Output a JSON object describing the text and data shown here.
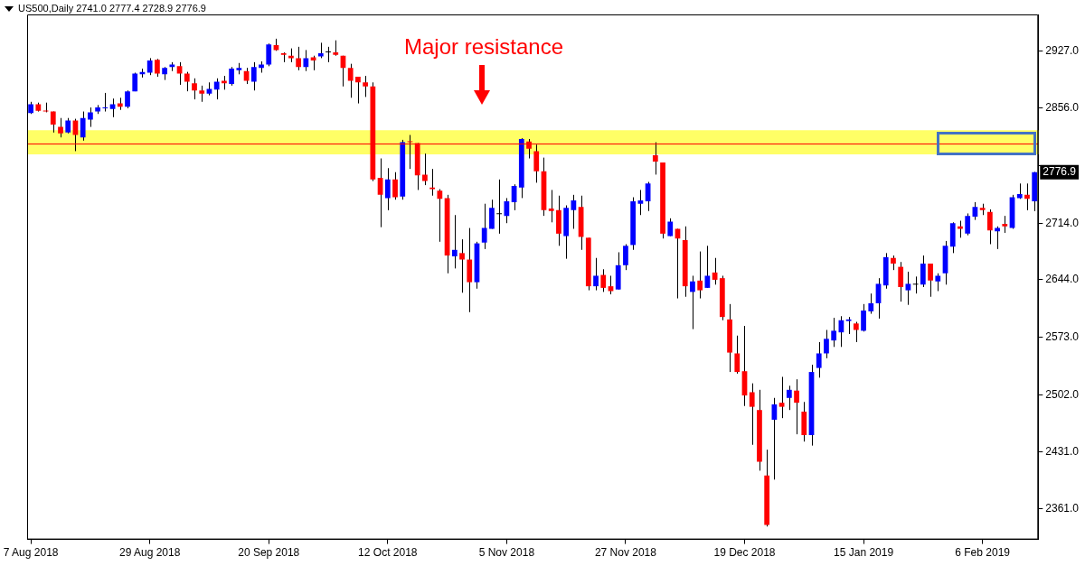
{
  "chart_data": {
    "type": "candlestick",
    "title": "US500,Daily 2741.0 2777.4 2728.9 2776.9",
    "categories": [
      "7 Aug 2018",
      null,
      null,
      null,
      null,
      null,
      null,
      null,
      null,
      null,
      null,
      null,
      null,
      null,
      null,
      null,
      "29 Aug 2018",
      null,
      null,
      null,
      null,
      null,
      null,
      null,
      null,
      null,
      null,
      null,
      null,
      null,
      null,
      null,
      "20 Sep 2018",
      null,
      null,
      null,
      null,
      null,
      null,
      null,
      null,
      null,
      null,
      null,
      null,
      null,
      null,
      null,
      "12 Oct 2018",
      null,
      null,
      null,
      null,
      null,
      null,
      null,
      null,
      null,
      null,
      null,
      null,
      null,
      null,
      null,
      "5 Nov 2018",
      null,
      null,
      null,
      null,
      null,
      null,
      null,
      null,
      null,
      null,
      null,
      null,
      null,
      null,
      null,
      "27 Nov 2018",
      null,
      null,
      null,
      null,
      null,
      null,
      null,
      null,
      null,
      null,
      null,
      null,
      null,
      null,
      null,
      "19 Dec 2018",
      null,
      null,
      null,
      null,
      null,
      null,
      null,
      null,
      null,
      null,
      null,
      null,
      null,
      null,
      null,
      "15 Jan 2019",
      null,
      null,
      null,
      null,
      null,
      null,
      null,
      null,
      null,
      null,
      null,
      null,
      null,
      null,
      null,
      "6 Feb 2019",
      null,
      null,
      null,
      null,
      null,
      null,
      null
    ],
    "ohlc": [
      [
        2850,
        2864,
        2849,
        2861
      ],
      [
        2861,
        2863,
        2852,
        2853
      ],
      [
        2853,
        2863,
        2851,
        2852
      ],
      [
        2852,
        2852,
        2826,
        2836
      ],
      [
        2833,
        2844,
        2820,
        2825
      ],
      [
        2826,
        2844,
        2825,
        2841
      ],
      [
        2841,
        2843,
        2803,
        2823
      ],
      [
        2820,
        2852,
        2816,
        2844
      ],
      [
        2842,
        2857,
        2833,
        2851
      ],
      [
        2852,
        2860,
        2849,
        2857
      ],
      [
        2856,
        2875,
        2852,
        2857
      ],
      [
        2855,
        2868,
        2845,
        2861
      ],
      [
        2862,
        2869,
        2854,
        2858
      ],
      [
        2858,
        2878,
        2856,
        2877
      ],
      [
        2877,
        2900,
        2877,
        2899
      ],
      [
        2898,
        2905,
        2894,
        2901
      ],
      [
        2900,
        2918,
        2897,
        2915
      ],
      [
        2916,
        2917,
        2895,
        2899
      ],
      [
        2898,
        2907,
        2891,
        2906
      ],
      [
        2907,
        2913,
        2902,
        2910
      ],
      [
        2908,
        2913,
        2885,
        2899
      ],
      [
        2899,
        2901,
        2877,
        2889
      ],
      [
        2887,
        2893,
        2867,
        2878
      ],
      [
        2878,
        2884,
        2864,
        2874
      ],
      [
        2874,
        2888,
        2872,
        2880
      ],
      [
        2879,
        2893,
        2867,
        2889
      ],
      [
        2890,
        2896,
        2879,
        2887
      ],
      [
        2886,
        2907,
        2884,
        2905
      ],
      [
        2903,
        2912,
        2898,
        2906
      ],
      [
        2902,
        2906,
        2886,
        2890
      ],
      [
        2889,
        2913,
        2878,
        2907
      ],
      [
        2906,
        2914,
        2900,
        2910
      ],
      [
        2910,
        2936,
        2908,
        2935
      ],
      [
        2934,
        2942,
        2927,
        2928
      ],
      [
        2924,
        2925,
        2913,
        2922
      ],
      [
        2921,
        2930,
        2913,
        2918
      ],
      [
        2918,
        2932,
        2903,
        2907
      ],
      [
        2907,
        2928,
        2902,
        2918
      ],
      [
        2919,
        2921,
        2903,
        2915
      ],
      [
        2920,
        2937,
        2918,
        2924
      ],
      [
        2925,
        2932,
        2913,
        2925
      ],
      [
        2925,
        2940,
        2921,
        2922
      ],
      [
        2921,
        2921,
        2883,
        2906
      ],
      [
        2906,
        2911,
        2869,
        2890
      ],
      [
        2895,
        2895,
        2862,
        2888
      ],
      [
        2888,
        2896,
        2870,
        2883
      ],
      [
        2883,
        2888,
        2766,
        2768
      ],
      [
        2770,
        2794,
        2709,
        2749
      ],
      [
        2745,
        2782,
        2730,
        2768
      ],
      [
        2768,
        2777,
        2743,
        2746
      ],
      [
        2747,
        2817,
        2743,
        2814
      ],
      [
        2815,
        2823,
        2781,
        2814
      ],
      [
        2813,
        2813,
        2755,
        2773
      ],
      [
        2774,
        2800,
        2761,
        2766
      ],
      [
        2758,
        2781,
        2748,
        2756
      ],
      [
        2754,
        2756,
        2691,
        2744
      ],
      [
        2745,
        2749,
        2652,
        2674
      ],
      [
        2673,
        2724,
        2658,
        2681
      ],
      [
        2677,
        2694,
        2628,
        2669
      ],
      [
        2669,
        2708,
        2604,
        2641
      ],
      [
        2641,
        2691,
        2633,
        2689
      ],
      [
        2690,
        2738,
        2682,
        2708
      ],
      [
        2707,
        2743,
        2707,
        2733
      ],
      [
        2725,
        2768,
        2701,
        2725
      ],
      [
        2723,
        2745,
        2714,
        2741
      ],
      [
        2740,
        2762,
        2730,
        2760
      ],
      [
        2758,
        2819,
        2745,
        2818
      ],
      [
        2815,
        2818,
        2794,
        2806
      ],
      [
        2803,
        2811,
        2764,
        2778
      ],
      [
        2778,
        2795,
        2723,
        2730
      ],
      [
        2732,
        2755,
        2715,
        2729
      ],
      [
        2730,
        2748,
        2686,
        2701
      ],
      [
        2698,
        2736,
        2670,
        2733
      ],
      [
        2730,
        2749,
        2707,
        2742
      ],
      [
        2734,
        2748,
        2681,
        2697
      ],
      [
        2696,
        2696,
        2631,
        2636
      ],
      [
        2636,
        2671,
        2631,
        2649
      ],
      [
        2650,
        2657,
        2629,
        2634
      ],
      [
        2636,
        2649,
        2626,
        2630
      ],
      [
        2632,
        2678,
        2632,
        2662
      ],
      [
        2662,
        2688,
        2656,
        2686
      ],
      [
        2687,
        2746,
        2681,
        2741
      ],
      [
        2738,
        2755,
        2724,
        2742
      ],
      [
        2741,
        2765,
        2729,
        2763
      ],
      [
        2798,
        2814,
        2774,
        2790
      ],
      [
        2789,
        2789,
        2695,
        2701
      ],
      [
        2698,
        2720,
        2698,
        2716
      ],
      [
        2707,
        2707,
        2621,
        2695
      ],
      [
        2693,
        2710,
        2623,
        2636
      ],
      [
        2629,
        2649,
        2583,
        2642
      ],
      [
        2643,
        2679,
        2621,
        2631
      ],
      [
        2634,
        2686,
        2634,
        2649
      ],
      [
        2653,
        2671,
        2638,
        2644
      ],
      [
        2646,
        2649,
        2594,
        2598
      ],
      [
        2595,
        2614,
        2530,
        2554
      ],
      [
        2553,
        2575,
        2528,
        2530
      ],
      [
        2531,
        2587,
        2488,
        2501
      ],
      [
        2505,
        2516,
        2440,
        2487
      ],
      [
        2483,
        2508,
        2408,
        2419
      ],
      [
        2402,
        2434,
        2339,
        2341
      ],
      [
        2471,
        2498,
        2397,
        2490
      ],
      [
        2492,
        2524,
        2473,
        2487
      ],
      [
        2498,
        2513,
        2483,
        2508
      ],
      [
        2507,
        2521,
        2453,
        2492
      ],
      [
        2481,
        2493,
        2444,
        2452
      ],
      [
        2452,
        2539,
        2439,
        2530
      ],
      [
        2535,
        2567,
        2523,
        2553
      ],
      [
        2553,
        2582,
        2547,
        2571
      ],
      [
        2569,
        2597,
        2561,
        2581
      ],
      [
        2579,
        2599,
        2561,
        2594
      ],
      [
        2593,
        2598,
        2577,
        2595
      ],
      [
        2590,
        2592,
        2567,
        2582
      ],
      [
        2581,
        2614,
        2580,
        2606
      ],
      [
        2605,
        2627,
        2602,
        2615
      ],
      [
        2615,
        2646,
        2596,
        2639
      ],
      [
        2637,
        2677,
        2633,
        2672
      ],
      [
        2671,
        2674,
        2656,
        2664
      ],
      [
        2660,
        2666,
        2617,
        2635
      ],
      [
        2631,
        2654,
        2613,
        2639
      ],
      [
        2638,
        2648,
        2627,
        2638
      ],
      [
        2638,
        2674,
        2635,
        2664
      ],
      [
        2664,
        2664,
        2623,
        2643
      ],
      [
        2642,
        2652,
        2630,
        2649
      ],
      [
        2652,
        2692,
        2638,
        2686
      ],
      [
        2685,
        2715,
        2677,
        2714
      ],
      [
        2710,
        2717,
        2696,
        2707
      ],
      [
        2701,
        2726,
        2699,
        2723
      ],
      [
        2722,
        2740,
        2718,
        2734
      ],
      [
        2733,
        2738,
        2724,
        2730
      ],
      [
        2728,
        2731,
        2688,
        2705
      ],
      [
        2704,
        2710,
        2682,
        2708
      ],
      [
        2713,
        2723,
        2702,
        2710
      ],
      [
        2708,
        2749,
        2707,
        2746
      ],
      [
        2745,
        2763,
        2744,
        2750
      ],
      [
        2749,
        2763,
        2730,
        2744
      ],
      [
        2741.0,
        2777.4,
        2728.9,
        2776.9
      ]
    ],
    "colors": [
      "#0000ff",
      "#ff0000",
      "#ff0000",
      "#ff0000",
      "#ff0000",
      "#0000ff",
      "#ff0000",
      "#0000ff",
      "#0000ff",
      "#0000ff",
      "#0000ff",
      "#0000ff",
      "#ff0000",
      "#0000ff",
      "#0000ff",
      "#0000ff",
      "#0000ff",
      "#ff0000",
      "#0000ff",
      "#0000ff",
      "#ff0000",
      "#ff0000",
      "#ff0000",
      "#ff0000",
      "#0000ff",
      "#0000ff",
      "#ff0000",
      "#0000ff",
      "#0000ff",
      "#ff0000",
      "#0000ff",
      "#0000ff",
      "#0000ff",
      "#ff0000",
      "#ff0000",
      "#ff0000",
      "#ff0000",
      "#0000ff",
      "#ff0000",
      "#0000ff",
      "#000000",
      "#ff0000",
      "#ff0000",
      "#ff0000",
      "#ff0000",
      "#ff0000",
      "#ff0000",
      "#ff0000",
      "#0000ff",
      "#ff0000",
      "#0000ff",
      "#ff0000",
      "#ff0000",
      "#ff0000",
      "#ff0000",
      "#ff0000",
      "#ff0000",
      "#0000ff",
      "#ff0000",
      "#ff0000",
      "#0000ff",
      "#0000ff",
      "#0000ff",
      "#000000",
      "#0000ff",
      "#0000ff",
      "#0000ff",
      "#ff0000",
      "#ff0000",
      "#ff0000",
      "#ff0000",
      "#ff0000",
      "#0000ff",
      "#0000ff",
      "#ff0000",
      "#ff0000",
      "#0000ff",
      "#ff0000",
      "#ff0000",
      "#0000ff",
      "#0000ff",
      "#0000ff",
      "#0000ff",
      "#0000ff",
      "#ff0000",
      "#ff0000",
      "#0000ff",
      "#ff0000",
      "#ff0000",
      "#0000ff",
      "#ff0000",
      "#0000ff",
      "#ff0000",
      "#ff0000",
      "#ff0000",
      "#ff0000",
      "#ff0000",
      "#ff0000",
      "#ff0000",
      "#ff0000",
      "#0000ff",
      "#ff0000",
      "#0000ff",
      "#ff0000",
      "#ff0000",
      "#0000ff",
      "#0000ff",
      "#0000ff",
      "#0000ff",
      "#0000ff",
      "#0000ff",
      "#ff0000",
      "#0000ff",
      "#0000ff",
      "#0000ff",
      "#0000ff",
      "#ff0000",
      "#ff0000",
      "#0000ff",
      "#000000",
      "#0000ff",
      "#ff0000",
      "#0000ff",
      "#0000ff",
      "#0000ff",
      "#ff0000",
      "#0000ff",
      "#0000ff",
      "#ff0000",
      "#ff0000",
      "#0000ff",
      "#ff0000",
      "#0000ff",
      "#0000ff",
      "#ff0000",
      "#0000ff"
    ],
    "ylim": [
      2323,
      2972
    ],
    "yticks": [
      {
        "value": 2927,
        "label": "2927.0"
      },
      {
        "value": 2856,
        "label": "2856.0"
      },
      {
        "value": 2785,
        "label": null
      },
      {
        "value": 2714,
        "label": "2714.0"
      },
      {
        "value": 2644,
        "label": "2644.0"
      },
      {
        "value": 2573,
        "label": "2573.0"
      },
      {
        "value": 2502,
        "label": "2502.0"
      },
      {
        "value": 2431,
        "label": "2431.0"
      },
      {
        "value": 2361,
        "label": "2361.0"
      }
    ],
    "ref_lines": [
      {
        "axis": "y",
        "value": 2812,
        "color": "#ff0000"
      }
    ],
    "bands": [
      {
        "axis": "y",
        "from": 2799,
        "to": 2829,
        "color": "#ffff66"
      }
    ],
    "annotations": [
      "Major resistance",
      {
        "text": "2776.9",
        "y": 2776.9
      }
    ]
  }
}
